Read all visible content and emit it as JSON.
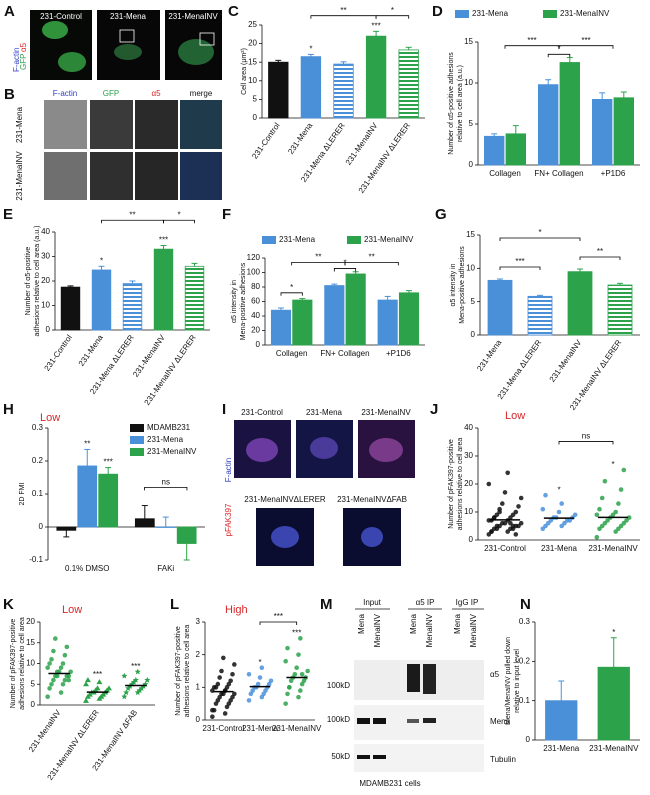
{
  "panel_a": {
    "letter": "A",
    "conditions": [
      "231-Control",
      "231-Mena",
      "231-MenaINV"
    ],
    "channels": [
      "GFP",
      "α5",
      "F-actin"
    ]
  },
  "panel_b": {
    "letter": "B",
    "columns": [
      "F-actin",
      "GFP",
      "α5",
      "merge"
    ],
    "rows": [
      "231-Mena",
      "231-MenaINV"
    ]
  },
  "panel_i": {
    "letter": "I",
    "conditions": [
      "231-Control",
      "231-Mena",
      "231-MenaINV",
      "231-MenaINVΔLERER",
      "231-MenaINVΔFAB"
    ],
    "channels": [
      "pFAK397",
      "F-actin"
    ]
  },
  "panel_m": {
    "letter": "M",
    "groups": [
      "Input",
      "α5 IP",
      "IgG IP"
    ],
    "lanes": [
      "Mena",
      "MenaINV",
      "Mena",
      "MenaINV",
      "Mena",
      "MenaINV"
    ],
    "bands": [
      "α5",
      "Mena",
      "Tubulin"
    ],
    "markers": [
      "100kD",
      "100kD",
      "50kD"
    ],
    "caption": "MDAMB231 cells"
  },
  "chart_data": [
    {
      "type": "bar",
      "panel": "C",
      "ylabel": [
        "Cell area (μm²)"
      ],
      "categories": [
        "231-Control",
        "231-Mena",
        "231-Mena ΔLERER",
        "231-MenaINV",
        "231-MenaINV ΔLERER"
      ],
      "values": [
        15,
        16.5,
        14.5,
        22,
        18.3
      ],
      "errors": [
        0.5,
        0.6,
        0.6,
        1.3,
        0.7
      ],
      "colors": [
        "#111111",
        "#4a90d9",
        "#4a90d9",
        "#2ca24a",
        "#2ca24a"
      ],
      "striped": [
        false,
        false,
        true,
        false,
        true
      ],
      "ylim": [
        0,
        25
      ],
      "yticks": [
        0,
        5,
        10,
        15,
        20,
        25
      ],
      "annotations": [
        "*",
        "***",
        "**",
        "*"
      ]
    },
    {
      "type": "bar",
      "panel": "D",
      "ylabel": [
        "Number of α5-positive adhesions",
        "relative to cell area (a.u.)"
      ],
      "categories": [
        "Collagen",
        "FN+ Collagen",
        "+P1D6"
      ],
      "series": [
        {
          "name": "231-Mena",
          "color": "#4a90d9",
          "values": [
            3.5,
            9.8,
            8
          ],
          "errors": [
            0.3,
            0.6,
            0.8
          ]
        },
        {
          "name": "231-MenaINV",
          "color": "#2ca24a",
          "values": [
            3.8,
            12.5,
            8.2
          ],
          "errors": [
            1,
            0.6,
            0.7
          ]
        }
      ],
      "ylim": [
        0,
        15
      ],
      "yticks": [
        0,
        5,
        10,
        15
      ],
      "annotations": [
        "***",
        "***",
        "*"
      ]
    },
    {
      "type": "bar",
      "panel": "E",
      "ylabel": [
        "Number of α5-positive",
        "adhesions relative to cell area (a.u.)"
      ],
      "categories": [
        "231-Control",
        "231-Mena",
        "231-Mena ΔLERER",
        "231-MenaINV",
        "231-MenaINV ΔLERER"
      ],
      "values": [
        17.5,
        24.5,
        19,
        33,
        26
      ],
      "errors": [
        0.5,
        1.5,
        1,
        1.5,
        1.2
      ],
      "colors": [
        "#111111",
        "#4a90d9",
        "#4a90d9",
        "#2ca24a",
        "#2ca24a"
      ],
      "striped": [
        false,
        false,
        true,
        false,
        true
      ],
      "ylim": [
        0,
        40
      ],
      "yticks": [
        0,
        10,
        20,
        30,
        40
      ],
      "annotations": [
        "*",
        "**",
        "*",
        "***"
      ]
    },
    {
      "type": "bar",
      "panel": "F",
      "ylabel": [
        "α5 intensity in",
        "Mena-positive adhesions"
      ],
      "categories": [
        "Collagen",
        "FN+ Collagen",
        "+P1D6"
      ],
      "series": [
        {
          "name": "231-Mena",
          "color": "#4a90d9",
          "values": [
            48,
            82,
            62
          ],
          "errors": [
            3,
            2,
            5
          ]
        },
        {
          "name": "231-MenaINV",
          "color": "#2ca24a",
          "values": [
            62,
            98,
            72
          ],
          "errors": [
            2,
            3,
            3
          ]
        }
      ],
      "ylim": [
        0,
        120
      ],
      "yticks": [
        0,
        20,
        40,
        60,
        80,
        100,
        120
      ],
      "annotations": [
        "**",
        "**",
        "*",
        "*"
      ]
    },
    {
      "type": "bar",
      "panel": "G",
      "ylabel": [
        "α5 intensity in",
        "Mena-positive adhesions"
      ],
      "categories": [
        "231-Mena",
        "231-Mena ΔLERER",
        "231-MenaINV",
        "231-MenaINV ΔLERER"
      ],
      "values": [
        8.2,
        5.8,
        9.5,
        7.5
      ],
      "errors": [
        0.2,
        0.15,
        0.4,
        0.25
      ],
      "colors": [
        "#4a90d9",
        "#4a90d9",
        "#2ca24a",
        "#2ca24a"
      ],
      "striped": [
        false,
        true,
        false,
        true
      ],
      "ylim": [
        0,
        15
      ],
      "yticks": [
        0,
        5,
        10,
        15
      ],
      "annotations": [
        "*",
        "***",
        "**"
      ]
    },
    {
      "type": "bar",
      "panel": "H",
      "condition": "Low",
      "ylabel": [
        "2D FMI"
      ],
      "categories": [
        "0.1% DMSO",
        "FAKi"
      ],
      "series": [
        {
          "name": "MDAMB231",
          "color": "#111111",
          "values": [
            -0.01,
            0.025
          ],
          "errors": [
            0.02,
            0.04
          ]
        },
        {
          "name": "231-Mena",
          "color": "#4a90d9",
          "values": [
            0.185,
            0.0
          ],
          "errors": [
            0.05,
            0.03
          ]
        },
        {
          "name": "231-MenaINV",
          "color": "#2ca24a",
          "values": [
            0.16,
            -0.05
          ],
          "errors": [
            0.02,
            0.05
          ]
        }
      ],
      "ylim": [
        -0.1,
        0.3
      ],
      "yticks": [
        -0.1,
        0,
        0.1,
        0.2,
        0.3
      ],
      "annotations": [
        "**",
        "***",
        "ns"
      ]
    },
    {
      "type": "strip",
      "panel": "J",
      "condition": "Low",
      "ylabel": [
        "Number of pFAK397-positive",
        "adhesions relative to cell area"
      ],
      "categories": [
        "231-Control",
        "231-Mena",
        "231-MenaINV"
      ],
      "colors": [
        "#111111",
        "#4a90d9",
        "#2ca24a"
      ],
      "points": [
        [
          2,
          3,
          3,
          4,
          4,
          4,
          5,
          5,
          5,
          5,
          6,
          6,
          6,
          7,
          7,
          7,
          8,
          8,
          9,
          9,
          10,
          11,
          12,
          13,
          15,
          17,
          20,
          24,
          3,
          6,
          8,
          5,
          4,
          2,
          10
        ],
        [
          4,
          5,
          5,
          6,
          6,
          7,
          7,
          7,
          8,
          8,
          8,
          9,
          10,
          11,
          13,
          16
        ],
        [
          1,
          3,
          4,
          4,
          5,
          5,
          6,
          6,
          7,
          7,
          8,
          8,
          9,
          9,
          10,
          11,
          13,
          15,
          18,
          21,
          25
        ]
      ],
      "means": [
        7.2,
        7.8,
        8.1
      ],
      "ylim": [
        0,
        40
      ],
      "yticks": [
        0,
        10,
        20,
        30,
        40
      ],
      "annotations": [
        "*",
        "ns",
        "*"
      ]
    },
    {
      "type": "strip",
      "panel": "K",
      "condition": "Low",
      "ylabel": [
        "Number of pFAK397-positive",
        "adhesions relative to cell area"
      ],
      "categories": [
        "231-MenaINV",
        "231-MenaINV ΔLERER",
        "231-MenaINV ΔFAB"
      ],
      "colors": [
        "#2ca24a",
        "#2ca24a",
        "#2ca24a"
      ],
      "markers": [
        "circle",
        "triangle",
        "star"
      ],
      "points": [
        [
          2,
          3,
          4,
          5,
          5,
          6,
          6,
          7,
          7,
          7,
          8,
          8,
          8,
          9,
          9,
          10,
          10,
          11,
          12,
          13,
          14,
          16,
          6,
          7
        ],
        [
          1,
          1.5,
          2,
          2,
          2.5,
          2.5,
          3,
          3,
          3,
          3.5,
          3.5,
          4,
          4,
          5,
          5.5,
          6
        ],
        [
          2,
          3,
          3,
          3.5,
          4,
          4,
          4.5,
          4.5,
          5,
          5,
          5.5,
          6,
          6,
          7,
          8
        ]
      ],
      "means": [
        7.6,
        3.1,
        4.7
      ],
      "ylim": [
        0,
        20
      ],
      "yticks": [
        0,
        5,
        10,
        15,
        20
      ],
      "annotations": [
        "***",
        "***"
      ]
    },
    {
      "type": "strip",
      "panel": "L",
      "condition": "High",
      "ylabel": [
        "Number of pFAK397-positive",
        "adhesions relative to cell area"
      ],
      "categories": [
        "231-Control",
        "231-Mena",
        "231-MenaINV"
      ],
      "colors": [
        "#111111",
        "#4a90d9",
        "#2ca24a"
      ],
      "points": [
        [
          0.1,
          0.2,
          0.3,
          0.4,
          0.5,
          0.5,
          0.6,
          0.6,
          0.7,
          0.7,
          0.8,
          0.8,
          0.8,
          0.9,
          0.9,
          1.0,
          1.0,
          1.0,
          1.1,
          1.1,
          1.2,
          1.3,
          1.4,
          1.5,
          1.7,
          1.9,
          0.3,
          0.9
        ],
        [
          0.6,
          0.7,
          0.8,
          0.8,
          0.9,
          0.9,
          1.0,
          1.0,
          1.0,
          1.1,
          1.1,
          1.2,
          1.3,
          1.4,
          1.6
        ],
        [
          0.5,
          0.7,
          0.8,
          0.9,
          1.0,
          1.1,
          1.2,
          1.2,
          1.3,
          1.3,
          1.4,
          1.5,
          1.6,
          1.8,
          2.0,
          2.2,
          2.5,
          1.0,
          1.4
        ]
      ],
      "means": [
        0.87,
        1.02,
        1.3
      ],
      "ylim": [
        0,
        3
      ],
      "yticks": [
        0,
        1,
        2,
        3
      ],
      "annotations": [
        "*",
        "***",
        "***"
      ]
    },
    {
      "type": "bar",
      "panel": "N",
      "ylabel": [
        "Mena/MenaINV pulled down",
        "relative to input level"
      ],
      "categories": [
        "231-Mena",
        "231-MenaINV"
      ],
      "values": [
        0.1,
        0.185
      ],
      "errors": [
        0.05,
        0.075
      ],
      "colors": [
        "#4a90d9",
        "#2ca24a"
      ],
      "ylim": [
        0,
        0.3
      ],
      "yticks": [
        0,
        0.1,
        0.2,
        0.3
      ],
      "annotations": [
        "*"
      ]
    }
  ]
}
